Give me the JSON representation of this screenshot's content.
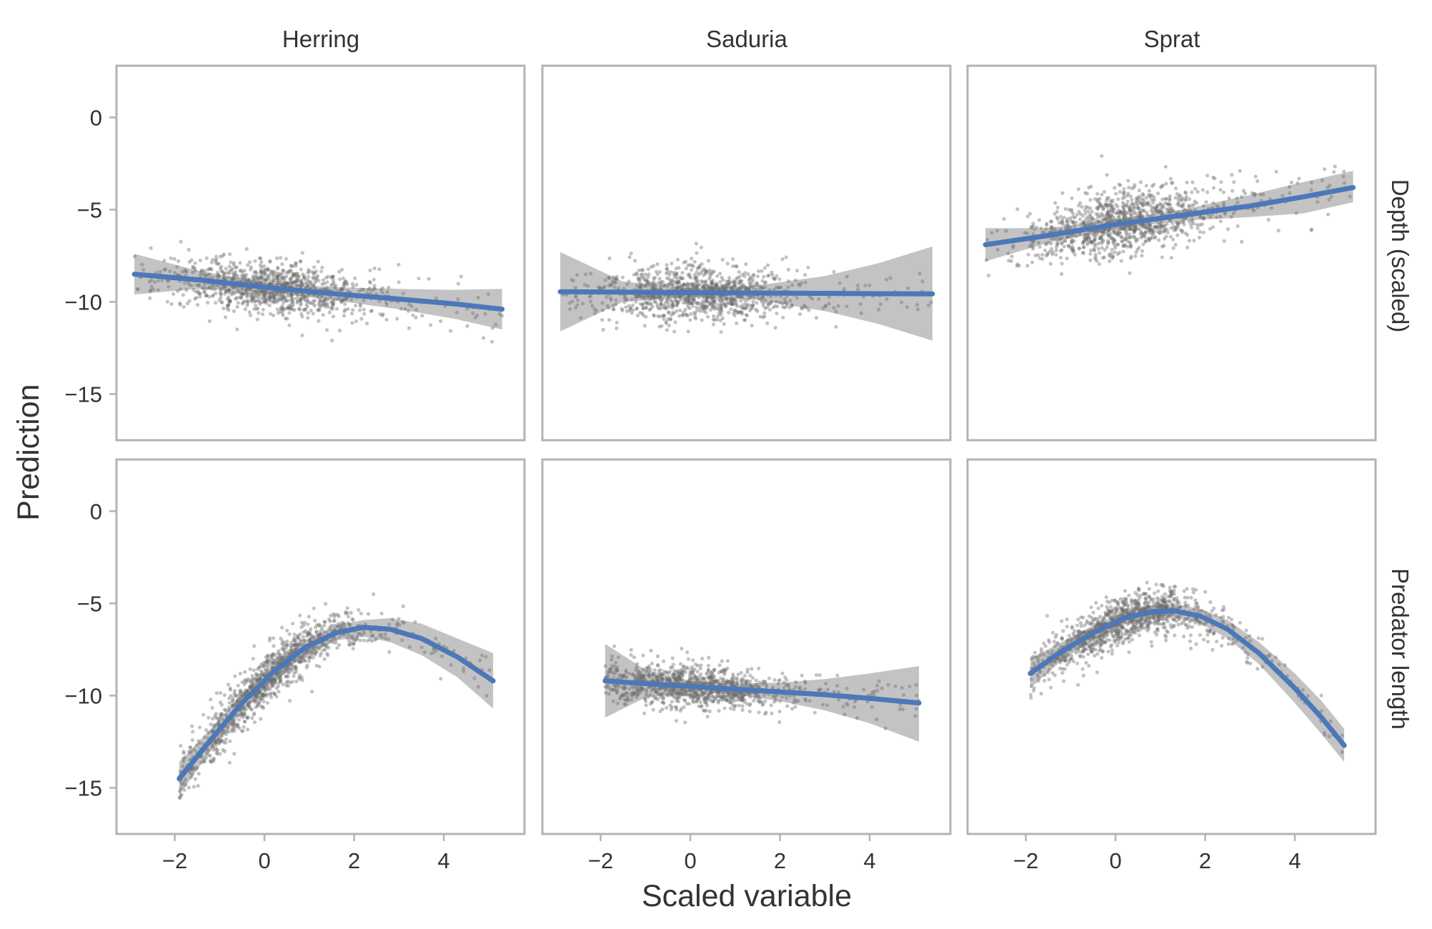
{
  "chart_data": {
    "type": "scatter",
    "xlabel": "Scaled variable",
    "ylabel": "Prediction",
    "columns": [
      "Herring",
      "Saduria",
      "Sprat"
    ],
    "rows": [
      "Depth (scaled)",
      "Predator length"
    ],
    "xlim": [
      -3.3,
      5.8
    ],
    "ylim": [
      -17.5,
      2.8
    ],
    "xticks": [
      -2,
      0,
      2,
      4
    ],
    "yticks": [
      0,
      -5,
      -10,
      -15
    ],
    "xtick_labels": [
      "−2",
      "0",
      "2",
      "4"
    ],
    "ytick_labels": [
      "0",
      "−5",
      "−10",
      "−15"
    ],
    "grid": false,
    "legend": "none",
    "colors": {
      "points": "#6e6e6e",
      "ribbon": "#bdbdbd",
      "line": "#4c78b8",
      "frame": "#b3b3b3",
      "text": "#333333"
    },
    "panels": [
      {
        "column": "Herring",
        "row": "Depth (scaled)",
        "trend_x": [
          -2.9,
          -1.5,
          0,
          1.5,
          3,
          4.2,
          5.3
        ],
        "trend_y": [
          -8.5,
          -8.8,
          -9.2,
          -9.55,
          -9.85,
          -10.1,
          -10.4
        ],
        "ribbon_lower": [
          -9.6,
          -9.3,
          -9.45,
          -9.9,
          -10.4,
          -10.9,
          -11.5
        ],
        "ribbon_upper": [
          -7.4,
          -8.3,
          -8.95,
          -9.2,
          -9.3,
          -9.35,
          -9.3
        ],
        "point_x_range": [
          -2.9,
          5.3
        ],
        "point_spread": 1.6
      },
      {
        "column": "Saduria",
        "row": "Depth (scaled)",
        "trend_x": [
          -2.9,
          -1.5,
          0,
          1.5,
          3,
          4.2,
          5.4
        ],
        "trend_y": [
          -9.45,
          -9.47,
          -9.5,
          -9.52,
          -9.54,
          -9.56,
          -9.57
        ],
        "ribbon_lower": [
          -11.6,
          -10.0,
          -9.75,
          -9.9,
          -10.5,
          -11.2,
          -12.1
        ],
        "ribbon_upper": [
          -7.3,
          -8.9,
          -9.25,
          -9.1,
          -8.6,
          -7.9,
          -7.0
        ],
        "point_x_range": [
          -2.9,
          5.4
        ],
        "point_spread": 1.6
      },
      {
        "column": "Sprat",
        "row": "Depth (scaled)",
        "trend_x": [
          -2.9,
          -1.5,
          0,
          1.5,
          3,
          4.2,
          5.3
        ],
        "trend_y": [
          -6.9,
          -6.4,
          -5.8,
          -5.3,
          -4.8,
          -4.3,
          -3.8
        ],
        "ribbon_lower": [
          -7.8,
          -6.8,
          -6.05,
          -5.6,
          -5.4,
          -5.2,
          -4.6
        ],
        "ribbon_upper": [
          -6.0,
          -6.0,
          -5.55,
          -5.0,
          -4.2,
          -3.5,
          -2.9
        ],
        "point_x_range": [
          -2.9,
          5.3
        ],
        "point_spread": 1.9
      },
      {
        "column": "Herring",
        "row": "Predator length",
        "trend_x": [
          -1.9,
          -1.2,
          -0.5,
          0.2,
          0.9,
          1.6,
          2.2,
          2.8,
          3.5,
          4.3,
          5.1
        ],
        "trend_y": [
          -14.5,
          -12.4,
          -10.4,
          -8.7,
          -7.4,
          -6.6,
          -6.3,
          -6.4,
          -6.9,
          -7.9,
          -9.2
        ],
        "ribbon_lower": [
          -15.4,
          -13.0,
          -10.9,
          -9.1,
          -7.8,
          -7.0,
          -6.8,
          -7.1,
          -7.8,
          -9.0,
          -10.7
        ],
        "ribbon_upper": [
          -13.6,
          -11.8,
          -9.9,
          -8.3,
          -7.0,
          -6.2,
          -5.9,
          -5.8,
          -6.1,
          -6.9,
          -7.7
        ],
        "point_x_range": [
          -1.9,
          5.1
        ],
        "point_spread": 1.6
      },
      {
        "column": "Saduria",
        "row": "Predator length",
        "trend_x": [
          -1.9,
          -1.0,
          0,
          1.0,
          2.0,
          3.0,
          4.0,
          5.1
        ],
        "trend_y": [
          -9.2,
          -9.35,
          -9.5,
          -9.65,
          -9.8,
          -9.95,
          -10.15,
          -10.4
        ],
        "ribbon_lower": [
          -11.2,
          -10.1,
          -9.8,
          -9.95,
          -10.3,
          -10.8,
          -11.5,
          -12.5
        ],
        "ribbon_upper": [
          -7.2,
          -8.6,
          -9.2,
          -9.35,
          -9.3,
          -9.1,
          -8.8,
          -8.4
        ],
        "point_x_range": [
          -1.9,
          5.1
        ],
        "point_spread": 1.3
      },
      {
        "column": "Sprat",
        "row": "Predator length",
        "trend_x": [
          -1.9,
          -1.2,
          -0.5,
          0.2,
          0.8,
          1.3,
          1.9,
          2.5,
          3.2,
          4.0,
          4.6,
          5.1
        ],
        "trend_y": [
          -8.8,
          -7.6,
          -6.6,
          -5.8,
          -5.45,
          -5.4,
          -5.7,
          -6.4,
          -7.7,
          -9.6,
          -11.2,
          -12.7
        ],
        "ribbon_lower": [
          -9.6,
          -8.1,
          -7.0,
          -6.15,
          -5.8,
          -5.75,
          -6.1,
          -6.9,
          -8.3,
          -10.4,
          -12.1,
          -13.6
        ],
        "ribbon_upper": [
          -8.0,
          -7.1,
          -6.2,
          -5.45,
          -5.1,
          -5.05,
          -5.3,
          -5.9,
          -7.1,
          -8.8,
          -10.3,
          -11.8
        ],
        "point_x_range": [
          -1.9,
          5.1
        ],
        "point_spread": 1.4
      }
    ]
  }
}
